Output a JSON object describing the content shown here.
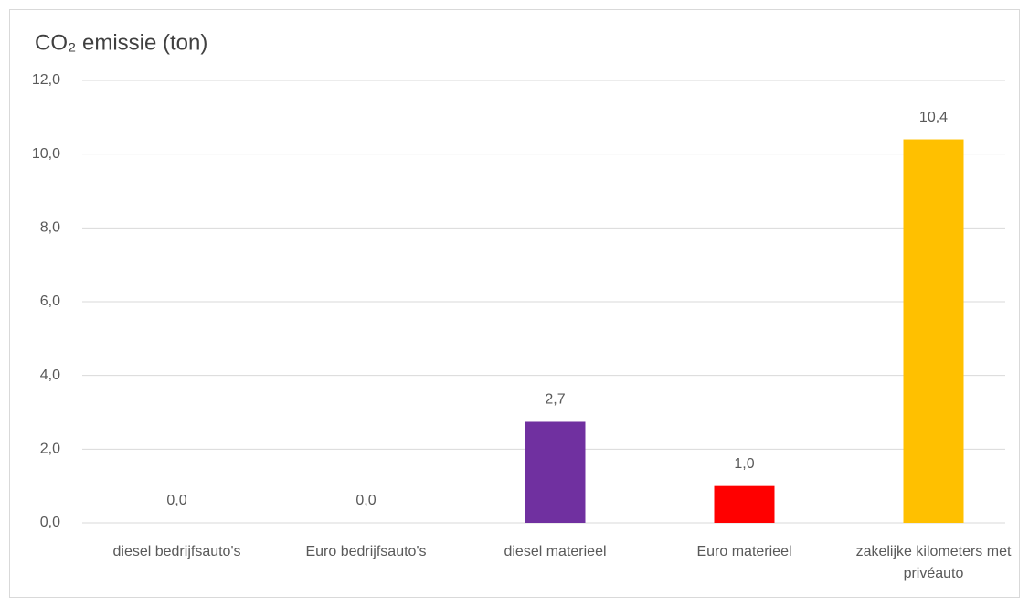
{
  "chart_data": {
    "type": "bar",
    "title": "CO₂ emissie (ton)",
    "categories": [
      "diesel bedrijfsauto's",
      "Euro bedrijfsauto's",
      "diesel materieel",
      "Euro materieel",
      "zakelijke kilometers met privéauto"
    ],
    "values": [
      0,
      0,
      2.74,
      1.0,
      10.4
    ],
    "value_labels": [
      "0,0",
      "0,0",
      "2,7",
      "1,0",
      "10,4"
    ],
    "colors": [
      null,
      null,
      "#7030a0",
      "#ff0000",
      "#ffc000"
    ],
    "ylim": [
      0,
      12
    ],
    "yticks": [
      {
        "value": 0,
        "label": "0,0"
      },
      {
        "value": 2,
        "label": "2,0"
      },
      {
        "value": 4,
        "label": "4,0"
      },
      {
        "value": 6,
        "label": "6,0"
      },
      {
        "value": 8,
        "label": "8,0"
      },
      {
        "value": 10,
        "label": "10,0"
      },
      {
        "value": 12,
        "label": "12,0"
      }
    ],
    "grid": true
  }
}
